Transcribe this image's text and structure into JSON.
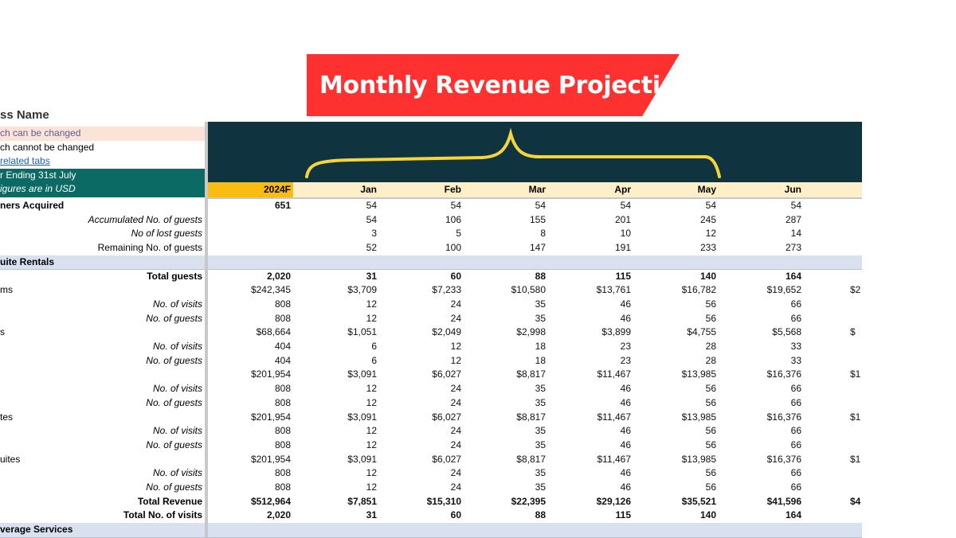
{
  "title": "Monthly Revenue Projection",
  "colors": {
    "banner": "#fe3131",
    "dark": "#0f3440",
    "brace": "#f5d53b",
    "teal": "#0b6b64",
    "pink": "#fbe3d7",
    "band": "#d9e1f0",
    "year": "#f9bc10",
    "header": "#fdf0c8",
    "link": "#1a5fd0"
  },
  "legend": {
    "business_name": "ss Name",
    "changeable": "ch can be changed",
    "not_changeable": "ch cannot be changed",
    "link": "related tabs",
    "year_ending": "r Ending 31st July",
    "currency_note": "igures are in USD"
  },
  "columns": [
    "2024F",
    "Jan",
    "Feb",
    "Mar",
    "Apr",
    "May",
    "Jun"
  ],
  "rows": [
    {
      "label": "ners Acquired",
      "style": "b-left",
      "values": [
        "651",
        "54",
        "54",
        "54",
        "54",
        "54",
        "54"
      ],
      "extra": ""
    },
    {
      "label": "Accumulated No. of guests",
      "style": "ri",
      "values": [
        "",
        "54",
        "106",
        "155",
        "201",
        "245",
        "287"
      ],
      "extra": ""
    },
    {
      "label": "No of lost guests",
      "style": "ri",
      "values": [
        "",
        "3",
        "5",
        "8",
        "10",
        "12",
        "14"
      ],
      "extra": ""
    },
    {
      "label": "Remaining No. of guests",
      "style": "r",
      "values": [
        "",
        "52",
        "100",
        "147",
        "191",
        "233",
        "273"
      ],
      "extra": ""
    },
    {
      "label": "uite Rentals",
      "style": "band",
      "values": [],
      "extra": ""
    },
    {
      "label": "Total guests",
      "style": "b-right",
      "values": [
        "2,020",
        "31",
        "60",
        "88",
        "115",
        "140",
        "164"
      ],
      "extra": ""
    },
    {
      "label": "ms",
      "style": "l",
      "values": [
        "$242,345",
        "$3,709",
        "$7,233",
        "$10,580",
        "$13,761",
        "$16,782",
        "$19,652"
      ],
      "extra": "$2"
    },
    {
      "label": "No. of visits",
      "style": "ri",
      "values": [
        "808",
        "12",
        "24",
        "35",
        "46",
        "56",
        "66"
      ],
      "extra": ""
    },
    {
      "label": "No. of guests",
      "style": "ri",
      "values": [
        "808",
        "12",
        "24",
        "35",
        "46",
        "56",
        "66"
      ],
      "extra": ""
    },
    {
      "label": "s",
      "style": "l",
      "values": [
        "$68,664",
        "$1,051",
        "$2,049",
        "$2,998",
        "$3,899",
        "$4,755",
        "$5,568"
      ],
      "extra": "$"
    },
    {
      "label": "No. of visits",
      "style": "ri",
      "values": [
        "404",
        "6",
        "12",
        "18",
        "23",
        "28",
        "33"
      ],
      "extra": ""
    },
    {
      "label": "No. of guests",
      "style": "ri",
      "values": [
        "404",
        "6",
        "12",
        "18",
        "23",
        "28",
        "33"
      ],
      "extra": ""
    },
    {
      "label": "",
      "style": "l",
      "values": [
        "$201,954",
        "$3,091",
        "$6,027",
        "$8,817",
        "$11,467",
        "$13,985",
        "$16,376"
      ],
      "extra": "$1"
    },
    {
      "label": "No. of visits",
      "style": "ri",
      "values": [
        "808",
        "12",
        "24",
        "35",
        "46",
        "56",
        "66"
      ],
      "extra": ""
    },
    {
      "label": "No. of guests",
      "style": "ri",
      "values": [
        "808",
        "12",
        "24",
        "35",
        "46",
        "56",
        "66"
      ],
      "extra": ""
    },
    {
      "label": "tes",
      "style": "l-sep",
      "values": [
        "$201,954",
        "$3,091",
        "$6,027",
        "$8,817",
        "$11,467",
        "$13,985",
        "$16,376"
      ],
      "extra": "$1"
    },
    {
      "label": "No. of visits",
      "style": "ri",
      "values": [
        "808",
        "12",
        "24",
        "35",
        "46",
        "56",
        "66"
      ],
      "extra": ""
    },
    {
      "label": "No. of guests",
      "style": "ri",
      "values": [
        "808",
        "12",
        "24",
        "35",
        "46",
        "56",
        "66"
      ],
      "extra": ""
    },
    {
      "label": "uites",
      "style": "l-sep",
      "values": [
        "$201,954",
        "$3,091",
        "$6,027",
        "$8,817",
        "$11,467",
        "$13,985",
        "$16,376"
      ],
      "extra": "$1"
    },
    {
      "label": "No. of visits",
      "style": "ri",
      "values": [
        "808",
        "12",
        "24",
        "35",
        "46",
        "56",
        "66"
      ],
      "extra": ""
    },
    {
      "label": "No. of guests",
      "style": "ri",
      "values": [
        "808",
        "12",
        "24",
        "35",
        "46",
        "56",
        "66"
      ],
      "extra": ""
    },
    {
      "label": "Total Revenue",
      "style": "b-right",
      "values": [
        "$512,964",
        "$7,851",
        "$15,310",
        "$22,395",
        "$29,126",
        "$35,521",
        "$41,596"
      ],
      "extra": "$4"
    },
    {
      "label": "Total No. of visits",
      "style": "b-right",
      "values": [
        "2,020",
        "31",
        "60",
        "88",
        "115",
        "140",
        "164"
      ],
      "extra": ""
    },
    {
      "label": "verage Services",
      "style": "band",
      "values": [],
      "extra": ""
    }
  ]
}
